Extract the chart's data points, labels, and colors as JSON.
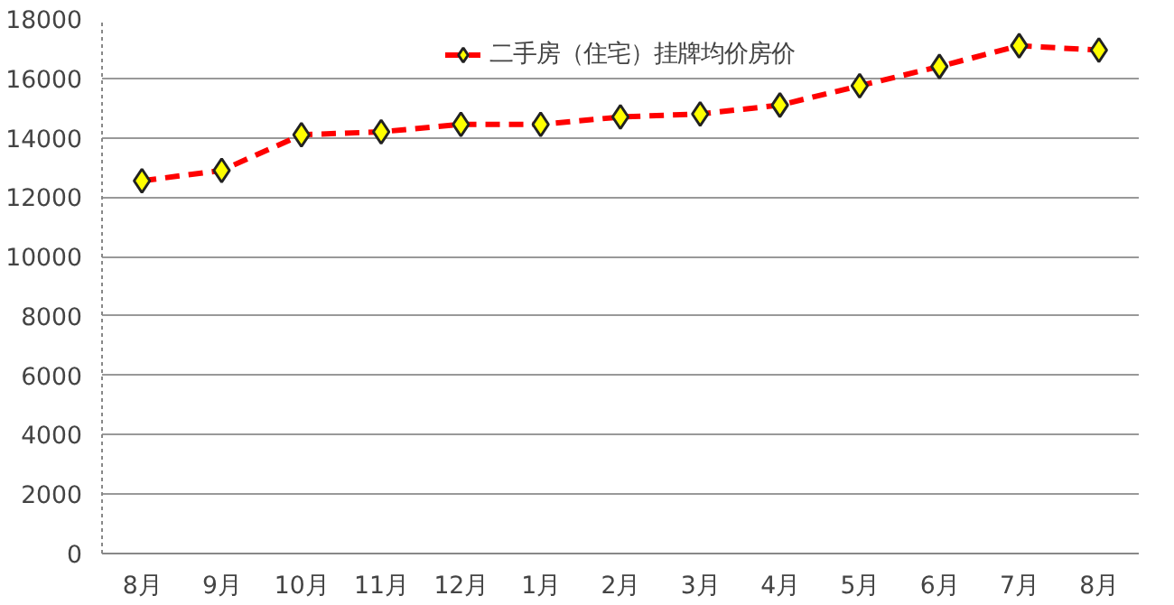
{
  "chart_data": {
    "type": "line",
    "categories": [
      "8月",
      "9月",
      "10月",
      "11月",
      "12月",
      "1月",
      "2月",
      "3月",
      "4月",
      "5月",
      "6月",
      "7月",
      "8月"
    ],
    "series": [
      {
        "name": "二手房（住宅）挂牌均价房价",
        "color": "#ff0000",
        "values": [
          12550,
          12900,
          14100,
          14200,
          14450,
          14450,
          14700,
          14800,
          15100,
          15750,
          16400,
          17100,
          16950
        ]
      }
    ],
    "ylim": [
      0,
      18000
    ],
    "yticks": [
      0,
      2000,
      4000,
      6000,
      8000,
      10000,
      12000,
      14000,
      16000,
      18000
    ],
    "grid": "y",
    "legend": "top",
    "marker": "diamond",
    "line_style": "dashed"
  }
}
